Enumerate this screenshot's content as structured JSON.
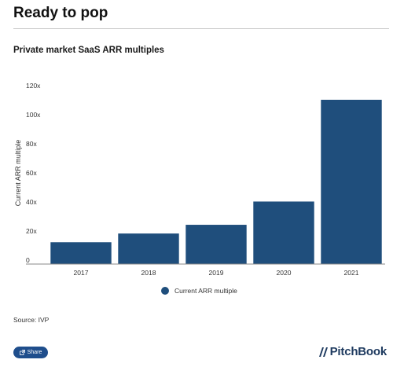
{
  "header": {
    "title": "Ready to pop"
  },
  "source": "Source: IVP",
  "share": {
    "label": "Share"
  },
  "brand": {
    "name": "PitchBook"
  },
  "colors": {
    "bar": "#1f4e7c",
    "axis": "#888888",
    "text": "#333333"
  },
  "chart_data": {
    "type": "bar",
    "title": "Private market SaaS ARR multiples",
    "xlabel": "",
    "ylabel": "Current ARR multiple",
    "categories": [
      "2017",
      "2018",
      "2019",
      "2020",
      "2021"
    ],
    "series": [
      {
        "name": "Current ARR multiple",
        "values": [
          15,
          21,
          27,
          43,
          113
        ]
      }
    ],
    "ylim": [
      0,
      120
    ],
    "yticks": [
      0,
      20,
      40,
      60,
      80,
      100,
      120
    ],
    "ytick_labels": [
      "0",
      "20x",
      "40x",
      "60x",
      "80x",
      "100x",
      "120x"
    ],
    "grid": false,
    "legend": "bottom-center"
  }
}
